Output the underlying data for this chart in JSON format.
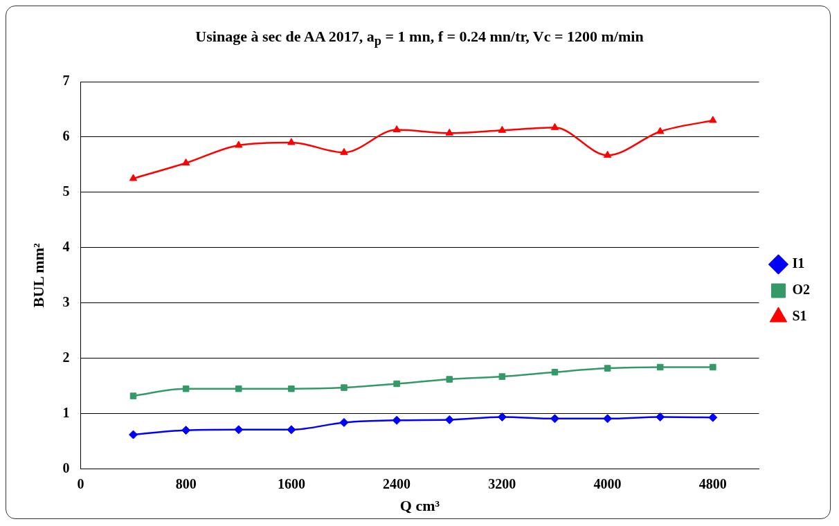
{
  "chart_data": {
    "type": "line",
    "title": "Usinage à sec de AA 2017, a$_{p}$ = 1 mn, f = 0.24 mn/tr, Vc = 1200 m/min",
    "xlabel": "Q cm³",
    "ylabel": "BUL mm²",
    "x": [
      400,
      800,
      1200,
      1600,
      2000,
      2400,
      2800,
      3200,
      3600,
      4000,
      4400,
      4800
    ],
    "series": [
      {
        "name": "I1",
        "color": "#0000ff",
        "marker": "diamond",
        "values": [
          0.62,
          0.7,
          0.71,
          0.71,
          0.84,
          0.88,
          0.89,
          0.94,
          0.91,
          0.91,
          0.94,
          0.93
        ]
      },
      {
        "name": "O2",
        "color": "#339966",
        "marker": "square",
        "values": [
          1.32,
          1.45,
          1.45,
          1.45,
          1.47,
          1.54,
          1.62,
          1.67,
          1.75,
          1.82,
          1.84,
          1.84
        ]
      },
      {
        "name": "S1",
        "color": "#ff0000",
        "marker": "triangle",
        "values": [
          5.25,
          5.53,
          5.85,
          5.9,
          5.72,
          6.13,
          6.07,
          6.12,
          6.17,
          5.67,
          6.1,
          6.3
        ]
      }
    ],
    "xlim": [
      0,
      5150
    ],
    "xticks": [
      0,
      800,
      1600,
      2400,
      3200,
      4000,
      4800
    ],
    "ylim": [
      0,
      7
    ],
    "yticks": [
      0,
      1,
      2,
      3,
      4,
      5,
      6,
      7
    ],
    "grid": "y",
    "legend": "right"
  }
}
